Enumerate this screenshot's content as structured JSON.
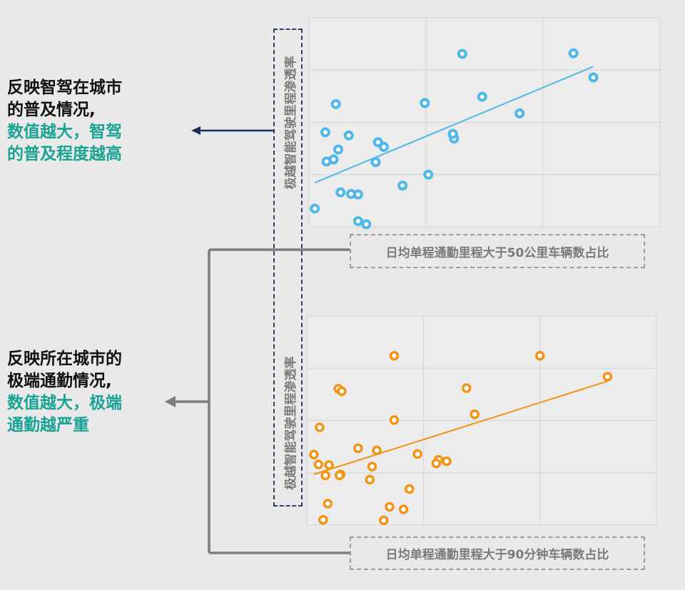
{
  "notes": {
    "top": {
      "line1": "反映智驾在城市",
      "line2": "的普及情况,",
      "line3": "数值越大，智驾",
      "line4": "的普及程度越高"
    },
    "bottom": {
      "line1": "反映所在城市的",
      "line2": "极端通勤情况,",
      "line3": "数值越大，极端",
      "line4": "通勤越严重"
    }
  },
  "colors": {
    "blue_series": "#4fb8e8",
    "orange_series": "#f39314",
    "highlight_text": "#1aa394",
    "arrow_top": "#1f2d5a",
    "arrow_bottom": "#7d7d7d"
  },
  "chart_data": [
    {
      "type": "scatter",
      "title": "",
      "xlabel": "日均单程通勤里程大于50公里车辆数占比",
      "ylabel": "极越智能驾驶里程渗透率",
      "xlim": [
        0,
        3
      ],
      "ylim": [
        0,
        4
      ],
      "grid": true,
      "trendline": true,
      "series": [
        {
          "x": [
            0.05,
            0.42,
            0.49,
            0.15,
            0.36,
            0.14,
            0.21,
            0.25,
            0.23,
            0.34,
            0.57,
            0.64,
            1.31,
            1.23,
            1.02,
            1.24,
            1.23,
            0.99,
            1.48,
            0.59,
            0.8,
            0.27,
            0.42,
            1.8,
            2.26,
            2.43
          ],
          "y": [
            0.35,
            0.11,
            0.05,
            1.25,
            0.63,
            1.81,
            1.29,
            1.48,
            2.35,
            1.75,
            1.24,
            1.53,
            3.31,
            1.77,
            1.0,
            1.69,
            1.78,
            2.37,
            2.49,
            1.62,
            0.79,
            0.66,
            0.62,
            2.17,
            3.32,
            2.86
          ]
        }
      ]
    },
    {
      "type": "scatter",
      "title": "",
      "xlabel": "日均单程通勤里程大于90分钟车辆数占比",
      "ylabel": "极越智能驾驶里程渗透率",
      "xlim": [
        0,
        3
      ],
      "ylim": [
        0,
        4
      ],
      "grid": true,
      "trendline": true,
      "series": [
        {
          "x": [
            0.06,
            0.19,
            0.29,
            0.11,
            0.1,
            0.27,
            0.3,
            0.75,
            0.75,
            0.44,
            0.54,
            0.6,
            0.56,
            0.95,
            0.28,
            0.66,
            0.88,
            0.83,
            0.16,
            0.14,
            0.18,
            0.71,
            1.13,
            1.11,
            1.2,
            1.37,
            2.0,
            2.58,
            1.44
          ],
          "y": [
            1.35,
            1.15,
            0.97,
            1.87,
            1.16,
            2.61,
            2.56,
            2.01,
            3.24,
            1.47,
            0.87,
            1.43,
            1.12,
            1.36,
            0.95,
            0.09,
            0.69,
            0.3,
            0.95,
            0.1,
            0.41,
            0.35,
            1.25,
            1.18,
            1.22,
            2.62,
            3.24,
            2.84,
            2.12
          ]
        }
      ]
    }
  ]
}
